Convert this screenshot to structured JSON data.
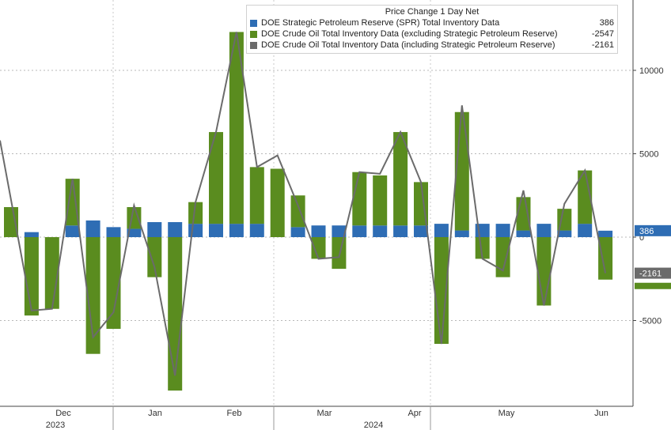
{
  "chart_data": {
    "type": "bar",
    "title": "Price Change 1 Day Net",
    "ylim": [
      -10000,
      14000
    ],
    "yticks": [
      -5000,
      0,
      5000,
      10000
    ],
    "ytick_labels": [
      "-5000",
      "0",
      "5000",
      "10000"
    ],
    "grid": true,
    "legend_position": "top-right",
    "x_month_labels": [
      "Dec",
      "Jan",
      "Feb",
      "Mar",
      "Apr",
      "May",
      "Jun"
    ],
    "x_year_labels": [
      "2023",
      "2024"
    ],
    "series": [
      {
        "name": "DOE Strategic Petroleum Reserve (SPR) Total Inventory Data",
        "legend_value": "386",
        "color": "#2e6db4",
        "values": [
          0,
          300,
          0,
          700,
          1000,
          600,
          500,
          900,
          900,
          800,
          800,
          800,
          800,
          0,
          600,
          700,
          700,
          700,
          700,
          700,
          700,
          800,
          400,
          800,
          800,
          400,
          800,
          400,
          800,
          386
        ]
      },
      {
        "name": "DOE Crude Oil Total Inventory Data (excluding Strategic Petroleum Reserve)",
        "legend_value": "-2547",
        "color": "#5a8c1f",
        "values": [
          1800,
          -4700,
          -4300,
          2800,
          -7000,
          -5500,
          1300,
          -2400,
          -9200,
          1300,
          5500,
          11500,
          3400,
          4100,
          1900,
          -1300,
          -1900,
          3200,
          3000,
          5600,
          2600,
          -6400,
          7100,
          -1300,
          -2400,
          2000,
          -4100,
          1300,
          3200,
          -2547
        ]
      },
      {
        "name": "DOE Crude Oil Total Inventory Data (including Strategic Petroleum Reserve)",
        "legend_value": "-2161",
        "color": "#6b6b6b",
        "values": [
          5800,
          -4400,
          -4300,
          3500,
          -6000,
          -4500,
          1900,
          -1800,
          -8300,
          2100,
          6300,
          12300,
          4200,
          4900,
          1900,
          -1300,
          -1200,
          3900,
          3800,
          6300,
          3300,
          -6400,
          7900,
          -1300,
          -2000,
          2800,
          -4100,
          2000,
          4000,
          -2161
        ]
      }
    ],
    "last_value_labels": [
      "386",
      "-2161",
      "-2547"
    ]
  }
}
